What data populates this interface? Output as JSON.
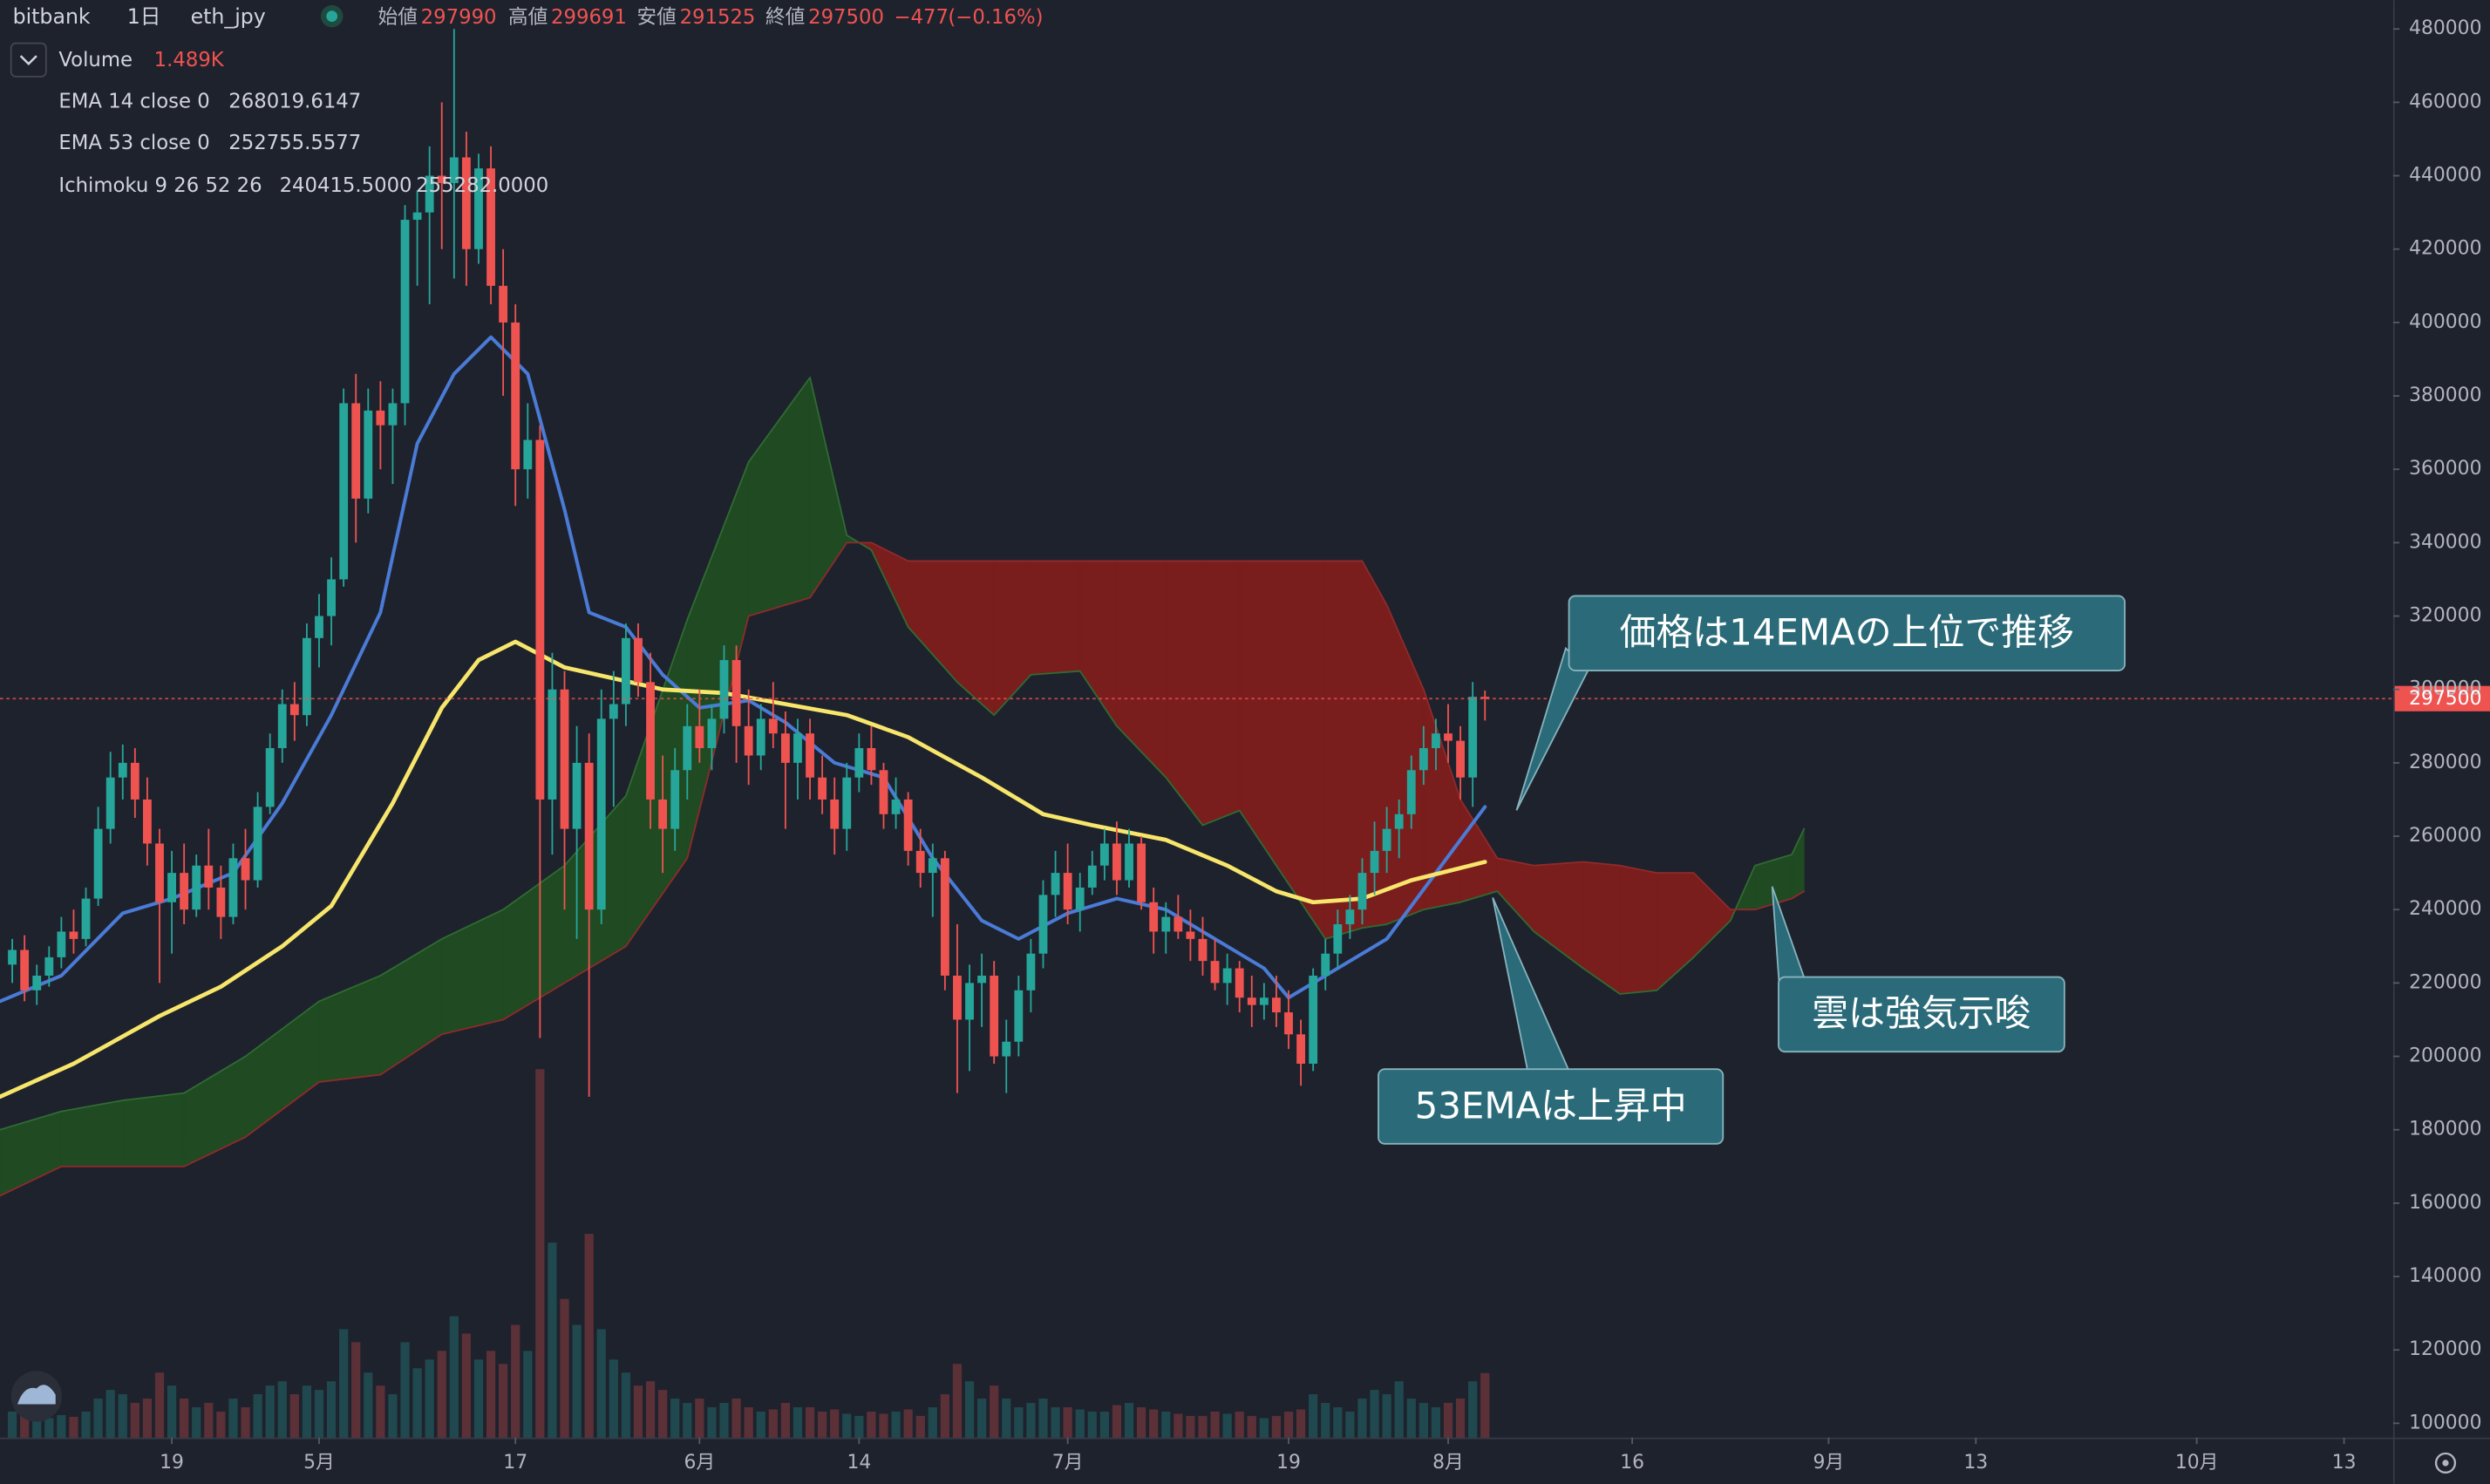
{
  "chart_data": {
    "type": "candlestick",
    "exchange": "bitbank",
    "interval": "1日",
    "symbol": "eth_jpy",
    "ohlc_labels": [
      "始値",
      "高値",
      "安値",
      "終値"
    ],
    "ohlc_values": [
      297990,
      299691,
      291525,
      297500
    ],
    "change": {
      "value": -477,
      "label": "−477"
    },
    "change_pct": {
      "value": -0.16,
      "label": "(−0.16%)"
    },
    "up_color": "#26a69a",
    "down_color": "#ef5350",
    "x": [
      "04-06",
      "04-07",
      "04-08",
      "04-09",
      "04-10",
      "04-11",
      "04-12",
      "04-13",
      "04-14",
      "04-15",
      "04-16",
      "04-17",
      "04-18",
      "04-19",
      "04-20",
      "04-21",
      "04-22",
      "04-23",
      "04-24",
      "04-25",
      "04-26",
      "04-27",
      "04-28",
      "04-29",
      "04-30",
      "05-01",
      "05-02",
      "05-03",
      "05-04",
      "05-05",
      "05-06",
      "05-07",
      "05-08",
      "05-09",
      "05-10",
      "05-11",
      "05-12",
      "05-13",
      "05-14",
      "05-15",
      "05-16",
      "05-17",
      "05-18",
      "05-19",
      "05-20",
      "05-21",
      "05-22",
      "05-23",
      "05-24",
      "05-25",
      "05-26",
      "05-27",
      "05-28",
      "05-29",
      "05-30",
      "05-31",
      "06-01",
      "06-02",
      "06-03",
      "06-04",
      "06-05",
      "06-06",
      "06-07",
      "06-08",
      "06-09",
      "06-10",
      "06-11",
      "06-12",
      "06-13",
      "06-14",
      "06-15",
      "06-16",
      "06-17",
      "06-18",
      "06-19",
      "06-20",
      "06-21",
      "06-22",
      "06-23",
      "06-24",
      "06-25",
      "06-26",
      "06-27",
      "06-28",
      "06-29",
      "06-30",
      "07-01",
      "07-02",
      "07-03",
      "07-04",
      "07-05",
      "07-06",
      "07-07",
      "07-08",
      "07-09",
      "07-10",
      "07-11",
      "07-12",
      "07-13",
      "07-14",
      "07-15",
      "07-16",
      "07-17",
      "07-18",
      "07-19",
      "07-20",
      "07-21",
      "07-22",
      "07-23",
      "07-24",
      "07-25",
      "07-26",
      "07-27",
      "07-28",
      "07-29",
      "07-30",
      "07-31",
      "08-01",
      "08-02",
      "08-03",
      "08-04"
    ],
    "open": [
      225000,
      229000,
      218000,
      222000,
      227000,
      234000,
      232000,
      243000,
      262000,
      276000,
      280000,
      270000,
      258000,
      242000,
      250000,
      240000,
      252000,
      246000,
      238000,
      254000,
      248000,
      268000,
      284000,
      296000,
      293000,
      314000,
      320000,
      330000,
      378000,
      352000,
      376000,
      372000,
      378000,
      428000,
      430000,
      440000,
      438000,
      445000,
      420000,
      442000,
      410000,
      400000,
      360000,
      368000,
      270000,
      300000,
      262000,
      280000,
      240000,
      292000,
      296000,
      314000,
      302000,
      270000,
      262000,
      278000,
      290000,
      284000,
      292000,
      308000,
      290000,
      282000,
      292000,
      288000,
      280000,
      288000,
      276000,
      270000,
      262000,
      276000,
      284000,
      278000,
      266000,
      270000,
      256000,
      250000,
      254000,
      222000,
      210000,
      220000,
      222000,
      200000,
      204000,
      218000,
      228000,
      244000,
      250000,
      240000,
      246000,
      252000,
      258000,
      248000,
      258000,
      242000,
      234000,
      238000,
      234000,
      232000,
      226000,
      220000,
      224000,
      216000,
      214000,
      216000,
      212000,
      206000,
      198000,
      222000,
      228000,
      236000,
      240000,
      250000,
      256000,
      262000,
      266000,
      278000,
      284000,
      288000,
      286000,
      276000,
      297990
    ],
    "high": [
      232000,
      233000,
      225000,
      230000,
      238000,
      240000,
      246000,
      268000,
      283000,
      285000,
      284000,
      276000,
      262000,
      256000,
      258000,
      255000,
      262000,
      252000,
      258000,
      262000,
      272000,
      288000,
      300000,
      302000,
      318000,
      326000,
      336000,
      382000,
      386000,
      382000,
      384000,
      382000,
      432000,
      436000,
      448000,
      460000,
      480000,
      452000,
      446000,
      448000,
      420000,
      405000,
      378000,
      372000,
      310000,
      305000,
      290000,
      288000,
      300000,
      305000,
      318000,
      318000,
      310000,
      282000,
      284000,
      296000,
      300000,
      296000,
      312000,
      312000,
      300000,
      296000,
      302000,
      294000,
      292000,
      292000,
      282000,
      276000,
      280000,
      288000,
      290000,
      280000,
      276000,
      272000,
      262000,
      258000,
      256000,
      236000,
      225000,
      228000,
      226000,
      210000,
      222000,
      232000,
      248000,
      256000,
      258000,
      250000,
      256000,
      262000,
      264000,
      262000,
      260000,
      246000,
      242000,
      244000,
      240000,
      238000,
      232000,
      228000,
      226000,
      222000,
      220000,
      222000,
      218000,
      210000,
      224000,
      232000,
      240000,
      244000,
      254000,
      264000,
      268000,
      270000,
      282000,
      290000,
      292000,
      296000,
      290000,
      302000,
      299691
    ],
    "low": [
      220000,
      215000,
      214000,
      219000,
      224000,
      228000,
      230000,
      241000,
      258000,
      270000,
      265000,
      252000,
      220000,
      228000,
      236000,
      238000,
      240000,
      232000,
      236000,
      240000,
      246000,
      266000,
      280000,
      286000,
      290000,
      306000,
      312000,
      328000,
      340000,
      348000,
      360000,
      356000,
      372000,
      410000,
      405000,
      420000,
      412000,
      410000,
      416000,
      405000,
      380000,
      350000,
      352000,
      205000,
      255000,
      240000,
      232000,
      189000,
      236000,
      268000,
      290000,
      298000,
      262000,
      250000,
      256000,
      270000,
      280000,
      278000,
      288000,
      280000,
      274000,
      278000,
      284000,
      262000,
      270000,
      270000,
      266000,
      255000,
      256000,
      272000,
      274000,
      262000,
      262000,
      252000,
      246000,
      238000,
      218000,
      190000,
      196000,
      208000,
      198000,
      190000,
      200000,
      212000,
      224000,
      238000,
      236000,
      234000,
      244000,
      248000,
      244000,
      246000,
      240000,
      228000,
      228000,
      232000,
      226000,
      222000,
      218000,
      214000,
      212000,
      208000,
      210000,
      208000,
      202000,
      192000,
      196000,
      218000,
      224000,
      232000,
      236000,
      244000,
      250000,
      254000,
      262000,
      274000,
      278000,
      280000,
      270000,
      268000,
      291525
    ],
    "close": [
      229000,
      218000,
      222000,
      227000,
      234000,
      232000,
      243000,
      262000,
      276000,
      280000,
      270000,
      258000,
      242000,
      250000,
      240000,
      252000,
      246000,
      238000,
      254000,
      248000,
      268000,
      284000,
      296000,
      293000,
      314000,
      320000,
      330000,
      378000,
      352000,
      376000,
      372000,
      378000,
      428000,
      430000,
      440000,
      438000,
      445000,
      420000,
      442000,
      410000,
      400000,
      360000,
      368000,
      270000,
      300000,
      262000,
      280000,
      240000,
      292000,
      296000,
      314000,
      302000,
      270000,
      262000,
      278000,
      290000,
      284000,
      292000,
      308000,
      290000,
      282000,
      292000,
      288000,
      280000,
      288000,
      276000,
      270000,
      262000,
      276000,
      284000,
      278000,
      266000,
      270000,
      256000,
      250000,
      254000,
      222000,
      210000,
      220000,
      222000,
      200000,
      204000,
      218000,
      228000,
      244000,
      250000,
      240000,
      246000,
      252000,
      258000,
      248000,
      258000,
      242000,
      234000,
      238000,
      234000,
      232000,
      226000,
      220000,
      224000,
      216000,
      214000,
      216000,
      212000,
      206000,
      198000,
      222000,
      228000,
      236000,
      240000,
      250000,
      256000,
      262000,
      266000,
      278000,
      284000,
      288000,
      286000,
      276000,
      298000,
      297500
    ],
    "volume": {
      "name": "Volume",
      "last": {
        "value": 1489,
        "label": "1.489K"
      },
      "values": [
        600,
        500,
        400,
        450,
        520,
        480,
        600,
        900,
        1100,
        1000,
        800,
        900,
        1500,
        1200,
        900,
        700,
        800,
        600,
        900,
        700,
        1000,
        1200,
        1300,
        1000,
        1200,
        1100,
        1300,
        2500,
        2200,
        1500,
        1200,
        1000,
        2200,
        1600,
        1800,
        2000,
        2800,
        2400,
        1800,
        2000,
        1700,
        2600,
        2000,
        8500,
        4500,
        3200,
        2600,
        4700,
        2500,
        1800,
        1500,
        1200,
        1300,
        1100,
        900,
        800,
        900,
        700,
        800,
        900,
        700,
        600,
        650,
        800,
        700,
        700,
        600,
        650,
        550,
        500,
        600,
        550,
        600,
        650,
        500,
        700,
        1000,
        1700,
        1300,
        900,
        1200,
        900,
        700,
        800,
        900,
        700,
        700,
        650,
        600,
        600,
        750,
        800,
        700,
        650,
        600,
        550,
        500,
        500,
        600,
        550,
        600,
        500,
        450,
        500,
        600,
        650,
        1000,
        800,
        700,
        600,
        900,
        1100,
        1000,
        1300,
        900,
        800,
        700,
        800,
        900,
        1300,
        1489
      ]
    },
    "lines": [
      {
        "name": "EMA 14 close 0",
        "color": "#4a7bd6",
        "value_color": "#5b8def",
        "last": 268019.6147,
        "x": [
          "04-05",
          "04-10",
          "04-15",
          "04-19",
          "04-24",
          "04-28",
          "05-02",
          "05-06",
          "05-09",
          "05-12",
          "05-15",
          "05-18",
          "05-21",
          "05-23",
          "05-26",
          "05-29",
          "06-01",
          "06-05",
          "06-08",
          "06-12",
          "06-16",
          "06-20",
          "06-24",
          "06-27",
          "07-01",
          "07-05",
          "07-09",
          "07-13",
          "07-17",
          "07-19",
          "07-23",
          "07-27",
          "07-31",
          "08-04"
        ],
        "values": [
          215000,
          222000,
          239000,
          243000,
          250000,
          269000,
          293000,
          321000,
          367000,
          386000,
          396000,
          386000,
          349000,
          321000,
          317000,
          304000,
          295000,
          297000,
          291000,
          280000,
          276000,
          254000,
          237000,
          232000,
          239000,
          243000,
          240000,
          232000,
          224000,
          216000,
          224000,
          232000,
          250000,
          268000
        ]
      },
      {
        "name": "EMA 53 close 0",
        "color": "#f7e66b",
        "value_color": "#f5e663",
        "last": 252755.5577,
        "x": [
          "04-05",
          "04-11",
          "04-18",
          "04-23",
          "04-28",
          "05-02",
          "05-07",
          "05-11",
          "05-14",
          "05-17",
          "05-21",
          "05-25",
          "05-29",
          "06-03",
          "06-08",
          "06-13",
          "06-18",
          "06-24",
          "06-29",
          "07-03",
          "07-09",
          "07-14",
          "07-18",
          "07-21",
          "07-25",
          "07-29",
          "08-04"
        ],
        "values": [
          189000,
          198000,
          211000,
          219000,
          230000,
          241000,
          269000,
          295000,
          308000,
          313000,
          306000,
          303000,
          300000,
          299000,
          296000,
          293000,
          287000,
          276000,
          266000,
          263000,
          259000,
          252000,
          245000,
          242000,
          243000,
          248000,
          253000
        ]
      }
    ],
    "ichimoku": {
      "name": "Ichimoku 9 26 52 26",
      "last": [
        {
          "value": 240415.5,
          "label": "240415.5000"
        },
        {
          "value": 255282,
          "label": "255282.0000"
        }
      ],
      "value_colors": [
        "#3f9a3f",
        "#e0443c"
      ],
      "fill_colors": [
        "#1f4a22",
        "#7a1d1d"
      ],
      "edge_colors": [
        "#2f6b32",
        "#8f2a2a"
      ],
      "x": [
        "04-05",
        "04-10",
        "04-15",
        "04-20",
        "04-25",
        "05-01",
        "05-06",
        "05-11",
        "05-16",
        "05-21",
        "05-26",
        "05-31",
        "06-05",
        "06-10",
        "06-13",
        "06-15",
        "06-18",
        "06-22",
        "06-25",
        "06-28",
        "07-02",
        "07-05",
        "07-09",
        "07-12",
        "07-15",
        "07-18",
        "07-22",
        "07-25",
        "07-27",
        "07-30",
        "08-02",
        "08-05",
        "08-08",
        "08-12",
        "08-15",
        "08-18",
        "08-21",
        "08-24",
        "08-26",
        "08-29",
        "08-30"
      ],
      "span_a": [
        180000,
        185000,
        188000,
        190000,
        200000,
        215000,
        222000,
        232000,
        240000,
        252000,
        271000,
        319000,
        362000,
        385000,
        342000,
        338000,
        317000,
        302000,
        293000,
        304000,
        305000,
        290000,
        276000,
        263000,
        267000,
        252000,
        232000,
        235000,
        236000,
        240000,
        242000,
        245000,
        234000,
        224000,
        217000,
        218000,
        227000,
        237000,
        252000,
        255000,
        262000
      ],
      "span_b": [
        162000,
        170000,
        170000,
        170000,
        178000,
        193000,
        195000,
        206000,
        210000,
        220000,
        230000,
        254000,
        320000,
        325000,
        340000,
        340000,
        335000,
        335000,
        335000,
        335000,
        335000,
        335000,
        335000,
        335000,
        335000,
        335000,
        335000,
        335000,
        323000,
        300000,
        270000,
        254000,
        252000,
        253000,
        252000,
        250000,
        250000,
        240000,
        240000,
        243000,
        245000
      ]
    },
    "annotations": [
      "価格は14EMAの上位で推移",
      "雲は強気示唆",
      "53EMAは上昇中"
    ],
    "xlim": [
      "04-05",
      "10-17"
    ],
    "xticks": [
      {
        "value": "04-19",
        "label": "19"
      },
      {
        "value": "05-01",
        "label": "5月"
      },
      {
        "value": "05-17",
        "label": "17"
      },
      {
        "value": "06-01",
        "label": "6月"
      },
      {
        "value": "06-14",
        "label": "14"
      },
      {
        "value": "07-01",
        "label": "7月"
      },
      {
        "value": "07-19",
        "label": "19"
      },
      {
        "value": "08-01",
        "label": "8月"
      },
      {
        "value": "08-16",
        "label": "16"
      },
      {
        "value": "09-01",
        "label": "9月"
      },
      {
        "value": "09-13",
        "label": "13"
      },
      {
        "value": "10-01",
        "label": "10月"
      },
      {
        "value": "10-13",
        "label": "13"
      }
    ],
    "ylim": [
      96100,
      487800
    ],
    "yticks": [
      100000,
      120000,
      140000,
      160000,
      180000,
      200000,
      220000,
      240000,
      260000,
      280000,
      300000,
      320000,
      340000,
      360000,
      380000,
      400000,
      420000,
      440000,
      460000,
      480000
    ],
    "grid": false
  }
}
